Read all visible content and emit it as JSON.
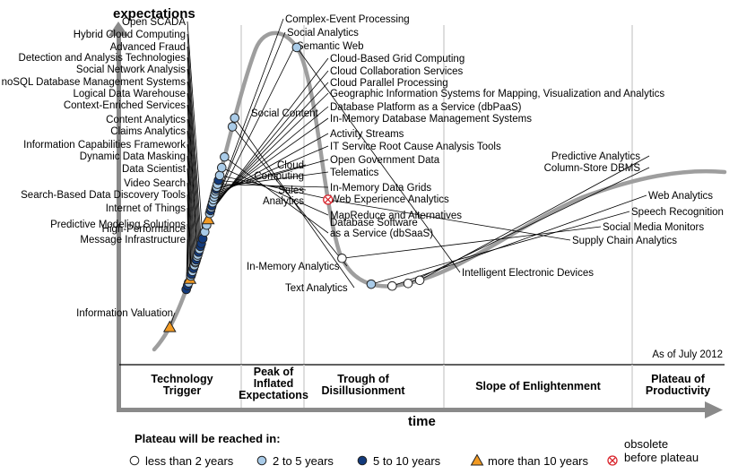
{
  "chart_data": {
    "type": "scatter",
    "title": "",
    "ylabel": "expectations",
    "xlabel": "time",
    "note": "As of July 2012",
    "phases": [
      "Technology\nTrigger",
      "Peak of\nInflated\nExpectations",
      "Trough of\nDisillusionment",
      "Slope of Enlightenment",
      "Plateau of\nProductivity"
    ],
    "legend": {
      "title": "Plateau will be reached in:",
      "items": [
        {
          "key": "lt2",
          "label": "less than 2 years"
        },
        {
          "key": "2to5",
          "label": "2 to 5 years"
        },
        {
          "key": "5to10",
          "label": "5 to 10 years"
        },
        {
          "key": "gt10",
          "label": "more than 10 years"
        },
        {
          "key": "obs",
          "label": "obsolete\nbefore plateau"
        }
      ]
    },
    "colors": {
      "lt2": "#ffffff",
      "2to5": "#a9cbe8",
      "5to10": "#123a7c",
      "gt10": "#f29a22",
      "obs": "#ffffff",
      "obs_mark": "#d9262e",
      "curve": "#9e9e9e",
      "divider": "#d3d3d3"
    },
    "technologies": [
      {
        "name": "Information Valuation",
        "t": 0.027,
        "cat": "gt10"
      },
      {
        "name": "High-Performance\nMessage Infrastructure",
        "t": 0.068,
        "cat": "5to10"
      },
      {
        "name": "Predictive Modeling Solutions",
        "t": 0.072,
        "cat": "5to10"
      },
      {
        "name": "Internet of Things",
        "t": 0.075,
        "cat": "2to5"
      },
      {
        "name": "Search-Based Data Discovery Tools",
        "t": 0.079,
        "cat": "gt10"
      },
      {
        "name": "Video Search",
        "t": 0.082,
        "cat": "2to5"
      },
      {
        "name": "Data Scientist",
        "t": 0.084,
        "cat": "5to10"
      },
      {
        "name": "Dynamic Data Masking",
        "t": 0.087,
        "cat": "2to5"
      },
      {
        "name": "Information Capabilities Framework",
        "t": 0.09,
        "cat": "5to10"
      },
      {
        "name": "Claims Analytics",
        "t": 0.093,
        "cat": "2to5"
      },
      {
        "name": "Content Analytics",
        "t": 0.096,
        "cat": "2to5"
      },
      {
        "name": "Social Content",
        "t": 0.097,
        "cat": "2to5"
      },
      {
        "name": "Context-Enriched Services",
        "t": 0.099,
        "cat": "5to10"
      },
      {
        "name": "Logical Data Warehouse",
        "t": 0.102,
        "cat": "2to5"
      },
      {
        "name": "noSQL Database Management Systems",
        "t": 0.104,
        "cat": "2to5"
      },
      {
        "name": "Social Network Analysis",
        "t": 0.107,
        "cat": "5to10"
      },
      {
        "name": "Detection and Analysis Technologies",
        "t": 0.11,
        "cat": "2to5"
      },
      {
        "name": "Advanced Fraud",
        "t": 0.113,
        "cat": "5to10"
      },
      {
        "name": "Hybrid Cloud Computing",
        "t": 0.116,
        "cat": "5to10"
      },
      {
        "name": "Open SCADA",
        "t": 0.121,
        "cat": "5to10"
      },
      {
        "name": "Complex-Event Processing",
        "t": 0.128,
        "cat": "2to5"
      },
      {
        "name": "Social Analytics",
        "t": 0.135,
        "cat": "2to5"
      },
      {
        "name": "Semantic Web",
        "t": 0.141,
        "cat": "gt10"
      },
      {
        "name": "Cloud-Based Grid Computing",
        "t": 0.147,
        "cat": "2to5"
      },
      {
        "name": "Cloud Collaboration Services",
        "t": 0.15,
        "cat": "5to10"
      },
      {
        "name": "Cloud Parallel Processing",
        "t": 0.153,
        "cat": "2to5"
      },
      {
        "name": "Geographic Information Systems for Mapping, Visualization and Analytics",
        "t": 0.155,
        "cat": "5to10"
      },
      {
        "name": "Database Platform as a Service (dbPaaS)",
        "t": 0.158,
        "cat": "2to5"
      },
      {
        "name": "In-Memory Database Management Systems",
        "t": 0.161,
        "cat": "2to5"
      },
      {
        "name": "Activity Streams",
        "t": 0.164,
        "cat": "2to5"
      },
      {
        "name": "IT Service Root Cause Analysis Tools",
        "t": 0.167,
        "cat": "2to5"
      },
      {
        "name": "Open Government Data",
        "t": 0.17,
        "cat": "2to5"
      },
      {
        "name": "Cloud\nComputing",
        "t": 0.172,
        "cat": "5to10"
      },
      {
        "name": "Telematics",
        "t": 0.174,
        "cat": "2to5"
      },
      {
        "name": "In-Memory Data Grids",
        "t": 0.177,
        "cat": "2to5"
      },
      {
        "name": "Sales\nAnalytics",
        "t": 0.181,
        "cat": "5to10"
      },
      {
        "name": "Web Experience Analytics",
        "t": 0.186,
        "cat": "2to5"
      },
      {
        "name": "MapReduce and Alternatives",
        "t": 0.194,
        "cat": "2to5"
      },
      {
        "name": "Database Software\nas a Service (dbSaaS)",
        "t": 0.205,
        "cat": "2to5"
      },
      {
        "name": "In-Memory Analytics",
        "t": 0.236,
        "cat": "2to5"
      },
      {
        "name": "Text Analytics",
        "t": 0.245,
        "cat": "2to5"
      },
      {
        "name": "Intelligent Electronic Devices",
        "t": 0.37,
        "cat": "2to5"
      },
      {
        "name": "Supply Chain Analytics",
        "t": 0.525,
        "cat": "obs"
      },
      {
        "name": "Social Media Monitors",
        "t": 0.585,
        "cat": "lt2"
      },
      {
        "name": "Speech Recognition",
        "t": 0.625,
        "cat": "2to5"
      },
      {
        "name": "Web Analytics",
        "t": 0.646,
        "cat": "lt2"
      },
      {
        "name": "Column-Store DBMS",
        "t": 0.662,
        "cat": "lt2"
      },
      {
        "name": "Predictive Analytics",
        "t": 0.674,
        "cat": "lt2"
      }
    ]
  }
}
